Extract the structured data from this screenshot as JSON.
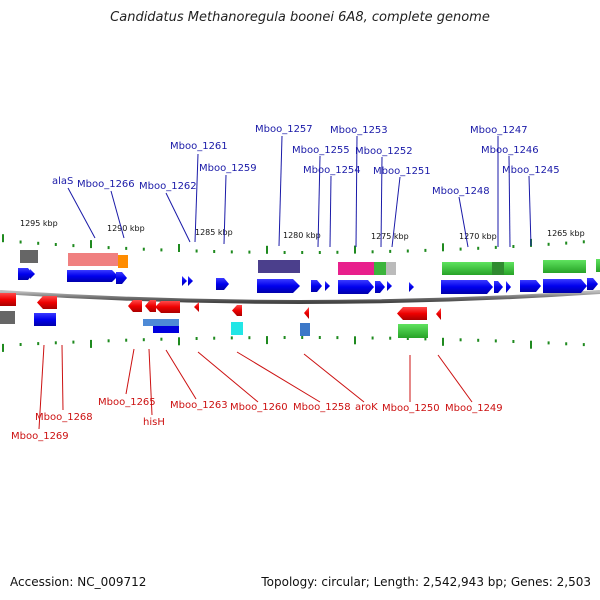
{
  "title": "Candidatus Methanoregula boonei 6A8, complete genome",
  "footer": {
    "accession": "Accession: NC_009712",
    "summary": "Topology: circular; Length: 2,542,943 bp; Genes: 2,503"
  },
  "colors": {
    "forward_label": "#1a1aa8",
    "reverse_label": "#cc1111",
    "forward_gene": "#0000ee",
    "reverse_gene": "#ee0000",
    "backbone": "#777777",
    "ticks": "#1f8a1f"
  },
  "scale_labels": [
    "1295 kbp",
    "1290 kbp",
    "1285 kbp",
    "1280 kbp",
    "1275 kbp",
    "1270 kbp",
    "1265 kbp"
  ],
  "forward_labels": [
    "alaS",
    "Mboo_1266",
    "Mboo_1262",
    "Mboo_1261",
    "Mboo_1259",
    "Mboo_1257",
    "Mboo_1255",
    "Mboo_1254",
    "Mboo_1253",
    "Mboo_1252",
    "Mboo_1251",
    "Mboo_1248",
    "Mboo_1247",
    "Mboo_1246",
    "Mboo_1245"
  ],
  "reverse_labels": [
    "Mboo_1269",
    "Mboo_1268",
    "Mboo_1265",
    "hisH",
    "Mboo_1263",
    "Mboo_1260",
    "Mboo_1258",
    "aroK",
    "Mboo_1250",
    "Mboo_1249"
  ]
}
